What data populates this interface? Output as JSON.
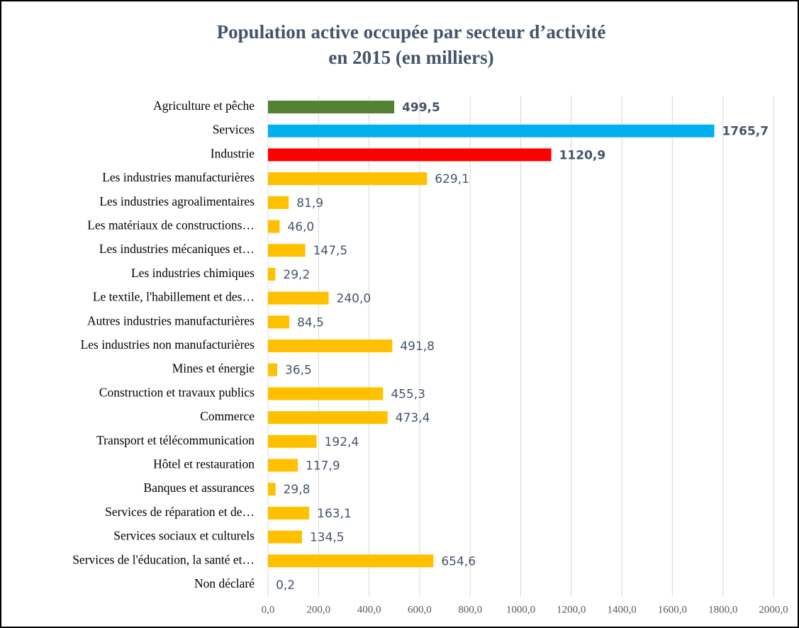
{
  "chart_data": {
    "type": "barh",
    "title": "Population active occupée par secteur d’activité",
    "subtitle": "en 2015 (en milliers)",
    "categories": [
      "Agriculture et pêche",
      "Services",
      "Industrie",
      "Les industries manufacturières",
      "Les industries agroalimentaires",
      "Les matériaux de constructions…",
      "Les industries mécaniques et…",
      "Les industries chimiques",
      "Le textile, l'habillement et des…",
      "Autres industries manufacturières",
      "Les industries non manufacturières",
      "Mines et énergie",
      "Construction et travaux publics",
      "Commerce",
      "Transport et télécommunication",
      "Hôtel et restauration",
      "Banques et assurances",
      "Services de réparation et de…",
      "Services sociaux et culturels",
      "Services de l'éducation, la santé et…",
      "Non déclaré"
    ],
    "values": [
      499.5,
      1765.7,
      1120.9,
      629.1,
      81.9,
      46.0,
      147.5,
      29.2,
      240.0,
      84.5,
      491.8,
      36.5,
      455.3,
      473.4,
      192.4,
      117.9,
      29.8,
      163.1,
      134.5,
      654.6,
      0.2
    ],
    "value_labels": [
      "499,5",
      "1765,7",
      "1120,9",
      "629,1",
      "81,9",
      "46,0",
      "147,5",
      "29,2",
      "240,0",
      "84,5",
      "491,8",
      "36,5",
      "455,3",
      "473,4",
      "192,4",
      "117,9",
      "29,8",
      "163,1",
      "134,5",
      "654,6",
      "0,2"
    ],
    "colors": [
      "#548235",
      "#00b0f0",
      "#ff0000",
      "#ffc000",
      "#ffc000",
      "#ffc000",
      "#ffc000",
      "#ffc000",
      "#ffc000",
      "#ffc000",
      "#ffc000",
      "#ffc000",
      "#ffc000",
      "#ffc000",
      "#ffc000",
      "#ffc000",
      "#ffc000",
      "#ffc000",
      "#ffc000",
      "#ffc000",
      "#ffc000"
    ],
    "value_label_bold": [
      true,
      true,
      true,
      false,
      false,
      false,
      false,
      false,
      false,
      false,
      false,
      false,
      false,
      false,
      false,
      false,
      false,
      false,
      false,
      false,
      false
    ],
    "xlim": [
      0,
      2000
    ],
    "xticks": [
      {
        "value": 0,
        "label": "0,0"
      },
      {
        "value": 200,
        "label": "200,0"
      },
      {
        "value": 400,
        "label": "400,0"
      },
      {
        "value": 600,
        "label": "600,0"
      },
      {
        "value": 800,
        "label": "800,0"
      },
      {
        "value": 1000,
        "label": "1000,0"
      },
      {
        "value": 1200,
        "label": "1200,0"
      },
      {
        "value": 1400,
        "label": "1400,0"
      },
      {
        "value": 1600,
        "label": "1600,0"
      },
      {
        "value": 1800,
        "label": "1800,0"
      },
      {
        "value": 2000,
        "label": "2000,0"
      }
    ],
    "grid": true
  }
}
